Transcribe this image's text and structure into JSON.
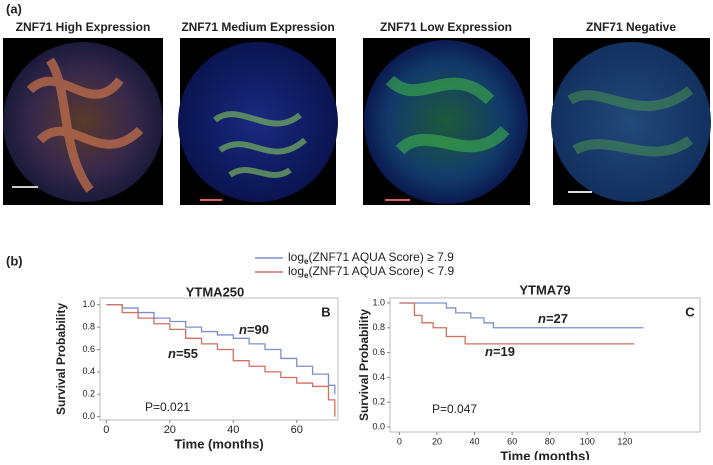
{
  "figure": {
    "panel_a": "(a)",
    "panel_b": "(b)",
    "image_titles": [
      "ZNF71 High Expression",
      "ZNF71 Medium Expression",
      "ZNF71 Low Expression",
      "ZNF71 Negative"
    ],
    "legend": [
      {
        "base": "log",
        "sub": "e",
        "text": "(ZNF71 AQUA Score) ≥ 7.9",
        "color": "#7b8fd0"
      },
      {
        "base": "log",
        "sub": "e",
        "text": "(ZNF71 AQUA Score) < 7.9",
        "color": "#d2705e"
      }
    ]
  },
  "chart_data": [
    {
      "type": "step",
      "title": "YTMA250",
      "panel": "B",
      "p_value": "P=0.021",
      "xlabel": "Time (months)",
      "ylabel": "Survival Probability",
      "annotations": [
        {
          "italic": "n",
          "text": "=90"
        },
        {
          "italic": "n",
          "text": "=55"
        }
      ],
      "xlim": [
        -2,
        73
      ],
      "ylim": [
        -0.03,
        1.06
      ],
      "xticks": [
        0,
        20,
        40,
        60
      ],
      "yticks": [
        {
          "value": 0,
          "label": "0.0"
        },
        0.2,
        0.4,
        0.6,
        0.8,
        {
          "value": 1,
          "label": "1.0"
        }
      ],
      "series": [
        {
          "color": "#7b8fd0",
          "x": [
            0,
            5,
            10,
            15,
            20,
            25,
            30,
            35,
            40,
            45,
            50,
            55,
            60,
            65,
            70,
            72
          ],
          "values": [
            1.0,
            0.97,
            0.93,
            0.88,
            0.85,
            0.8,
            0.76,
            0.73,
            0.7,
            0.65,
            0.6,
            0.52,
            0.45,
            0.38,
            0.28,
            0.2
          ]
        },
        {
          "color": "#d2705e",
          "x": [
            0,
            5,
            10,
            15,
            20,
            25,
            30,
            35,
            40,
            45,
            50,
            55,
            60,
            65,
            70,
            72
          ],
          "values": [
            1.0,
            0.93,
            0.88,
            0.83,
            0.78,
            0.7,
            0.65,
            0.6,
            0.5,
            0.45,
            0.4,
            0.35,
            0.3,
            0.27,
            0.15,
            0.0
          ]
        }
      ]
    },
    {
      "type": "step",
      "title": "YTMA79",
      "panel": "C",
      "p_value": "P=0.047",
      "xlabel": "Time (months)",
      "ylabel": "Survival Probability",
      "annotations": [
        {
          "italic": "n",
          "text": "=27"
        },
        {
          "italic": "n",
          "text": "=19"
        }
      ],
      "xlim": [
        -5,
        160
      ],
      "ylim": [
        -0.04,
        1.04
      ],
      "xticks": [
        0,
        20,
        40,
        60,
        80,
        100,
        120
      ],
      "yticks": [
        {
          "value": 0,
          "label": "0.0"
        },
        0.2,
        0.4,
        0.6,
        0.8,
        {
          "value": 1,
          "label": "1.0"
        }
      ],
      "series": [
        {
          "color": "#7b8fd0",
          "x": [
            0,
            25,
            30,
            38,
            45,
            50,
            130
          ],
          "values": [
            1.0,
            0.96,
            0.92,
            0.88,
            0.84,
            0.8,
            0.8
          ]
        },
        {
          "color": "#d2705e",
          "x": [
            0,
            8,
            12,
            18,
            25,
            35,
            125
          ],
          "values": [
            1.0,
            0.9,
            0.84,
            0.8,
            0.73,
            0.67,
            0.67
          ]
        }
      ]
    }
  ]
}
